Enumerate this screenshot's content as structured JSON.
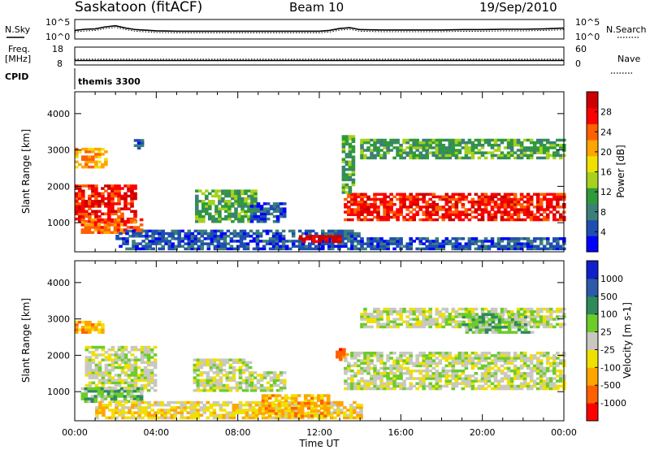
{
  "header": {
    "station": "Saskatoon (fitACF)",
    "beam": "Beam 10",
    "date": "19/Sep/2010"
  },
  "left_labels": {
    "nsky": "N.Sky",
    "freq_line1": "Freq.",
    "freq_line2": "[MHz]",
    "cpid": "CPID"
  },
  "right_labels": {
    "nsearch": "N.Search",
    "nave": "Nave"
  },
  "cpid_value": "themis 3300",
  "chart_data": [
    {
      "id": "noise",
      "type": "line",
      "series": [
        {
          "name": "N.Sky",
          "style": "solid"
        },
        {
          "name": "N.Search",
          "style": "dotted"
        }
      ],
      "y_left_ticks": [
        "10^5",
        "10^0"
      ],
      "y_right_ticks": [
        "10^5",
        "10^0"
      ],
      "x": [
        0,
        0.5,
        1,
        1.5,
        2,
        2.5,
        3,
        4,
        5,
        6,
        7,
        8,
        9,
        10,
        11,
        12,
        12.5,
        13,
        13.5,
        14,
        15,
        16,
        17,
        18,
        19,
        20,
        21,
        22,
        23,
        24
      ],
      "values": [
        2.2,
        2.5,
        2.6,
        3.1,
        3.4,
        2.8,
        2.4,
        2.1,
        2.0,
        2.0,
        2.0,
        2.0,
        2.0,
        2.0,
        2.0,
        2.0,
        2.2,
        2.7,
        2.9,
        2.4,
        2.3,
        2.3,
        2.3,
        2.3,
        2.4,
        2.4,
        2.5,
        2.5,
        2.6,
        2.8
      ],
      "ylim": [
        0,
        5
      ]
    },
    {
      "id": "freq-nave",
      "type": "line",
      "series": [
        {
          "name": "Freq.",
          "style": "solid",
          "values_constant": 10.5
        },
        {
          "name": "Nave",
          "style": "dotted",
          "values_constant": 11.2
        }
      ],
      "y_left_ticks": [
        "18",
        "8"
      ],
      "y_right_ticks": [
        "60",
        "0"
      ],
      "ylim": [
        8,
        18
      ]
    },
    {
      "id": "power",
      "type": "heatmap",
      "ylabel": "Slant Range [km]",
      "yticks": [
        "1000",
        "2000",
        "3000",
        "4000"
      ],
      "ylim": [
        200,
        4600
      ],
      "xlim": [
        0,
        24
      ],
      "colorbar": {
        "label": "Power [dB]",
        "ticks": [
          "4",
          "8",
          "12",
          "16",
          "20",
          "24",
          "28"
        ],
        "colors": [
          "#0000ff",
          "#1e4fb0",
          "#3c7f78",
          "#2f9a3a",
          "#a6d11e",
          "#f0e000",
          "#ffa500",
          "#ff6000",
          "#ff0000",
          "#cc0000"
        ]
      },
      "regions": [
        {
          "t0": 0.0,
          "t1": 2.9,
          "r0": 1000,
          "r1": 2000,
          "color_index": 8
        },
        {
          "t0": 0.3,
          "t1": 3.2,
          "r0": 700,
          "r1": 1100,
          "color_index": 7
        },
        {
          "t0": 0.0,
          "t1": 1.5,
          "r0": 2500,
          "r1": 3000,
          "color_index": 6
        },
        {
          "t0": 2.9,
          "t1": 3.3,
          "r0": 2950,
          "r1": 3300,
          "color_index": 1
        },
        {
          "t0": 5.9,
          "t1": 8.8,
          "r0": 1000,
          "r1": 1900,
          "color_index": 3
        },
        {
          "t0": 8.6,
          "t1": 10.3,
          "r0": 1000,
          "r1": 1500,
          "color_index": 1
        },
        {
          "t0": 2.0,
          "t1": 14.0,
          "r0": 250,
          "r1": 800,
          "color_index": 1
        },
        {
          "t0": 11.0,
          "t1": 13.0,
          "r0": 450,
          "r1": 650,
          "color_index": 9
        },
        {
          "t0": 13.2,
          "t1": 24.0,
          "r0": 1050,
          "r1": 1800,
          "color_index": 8
        },
        {
          "t0": 13.1,
          "t1": 13.6,
          "r0": 1800,
          "r1": 3400,
          "color_index": 3
        },
        {
          "t0": 14.0,
          "t1": 24.0,
          "r0": 2750,
          "r1": 3250,
          "color_index": 3
        },
        {
          "t0": 14.0,
          "t1": 24.0,
          "r0": 250,
          "r1": 600,
          "color_index": 1
        }
      ]
    },
    {
      "id": "velocity",
      "type": "heatmap",
      "ylabel": "Slant Range [km]",
      "xlabel": "Time UT",
      "xticks": [
        "00:00",
        "04:00",
        "08:00",
        "12:00",
        "16:00",
        "20:00",
        "00:00"
      ],
      "yticks": [
        "1000",
        "2000",
        "3000",
        "4000"
      ],
      "ylim": [
        200,
        4600
      ],
      "xlim": [
        0,
        24
      ],
      "colorbar": {
        "label": "Velocity [m s-1]",
        "ticks": [
          "1000",
          "500",
          "100",
          "25",
          "-25",
          "-100",
          "-500",
          "-1000"
        ],
        "colors": [
          "#1020c8",
          "#2a5aa8",
          "#2f8a5a",
          "#6ccc2a",
          "#c8c8c0",
          "#f0e000",
          "#ffa500",
          "#ff6000",
          "#ff0000"
        ]
      },
      "regions": [
        {
          "t0": 0.5,
          "t1": 4.0,
          "r0": 1000,
          "r1": 2200,
          "color_index": 4
        },
        {
          "t0": 0.3,
          "t1": 3.2,
          "r0": 700,
          "r1": 1100,
          "color_index": 3
        },
        {
          "t0": 0.0,
          "t1": 1.3,
          "r0": 2600,
          "r1": 2950,
          "color_index": 6
        },
        {
          "t0": 5.8,
          "t1": 8.6,
          "r0": 1000,
          "r1": 1900,
          "color_index": 4
        },
        {
          "t0": 8.6,
          "t1": 10.3,
          "r0": 1000,
          "r1": 1500,
          "color_index": 4
        },
        {
          "t0": 1.0,
          "t1": 14.0,
          "r0": 250,
          "r1": 700,
          "color_index": 5
        },
        {
          "t0": 9.0,
          "t1": 12.5,
          "r0": 300,
          "r1": 900,
          "color_index": 6
        },
        {
          "t0": 13.2,
          "t1": 24.0,
          "r0": 1050,
          "r1": 2100,
          "color_index": 4
        },
        {
          "t0": 14.0,
          "t1": 24.0,
          "r0": 2750,
          "r1": 3250,
          "color_index": 4
        },
        {
          "t0": 12.8,
          "t1": 13.3,
          "r0": 1850,
          "r1": 2150,
          "color_index": 7
        },
        {
          "t0": 19.0,
          "t1": 22.5,
          "r0": 2600,
          "r1": 3150,
          "color_index": 3
        }
      ]
    }
  ]
}
